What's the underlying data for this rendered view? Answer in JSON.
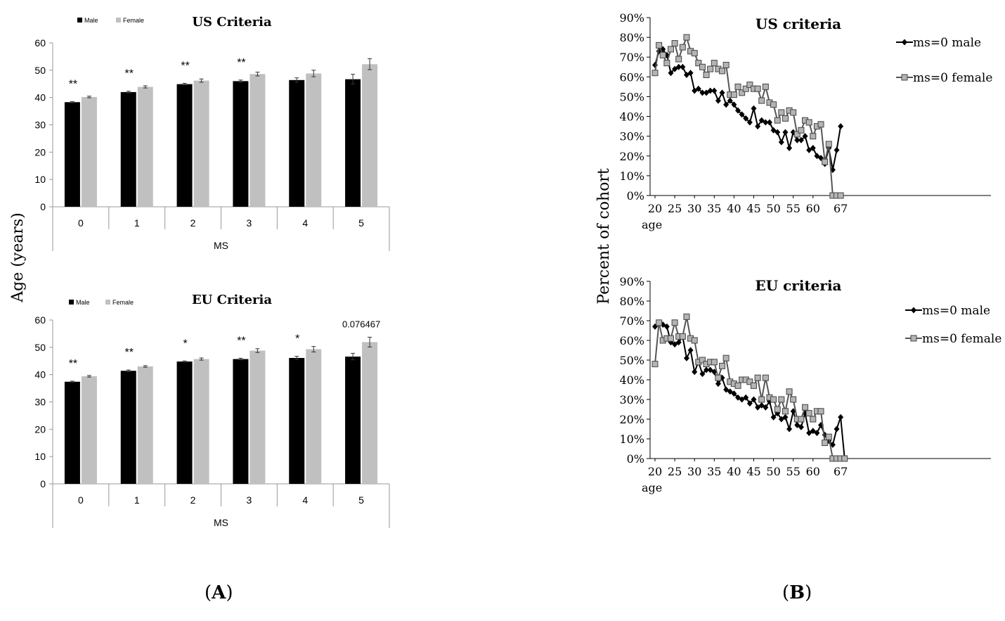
{
  "colors": {
    "male": "#000000",
    "female": "#c0c0c0",
    "female_line": "#555555",
    "female_marker": "#b4b4b4"
  },
  "panel_a_ylabel": "Age (years)",
  "panel_b_ylabel": "Percent of cohort",
  "captions": {
    "a_letter": "A",
    "b_letter": "B"
  },
  "chart_data": [
    {
      "type": "bar",
      "title": "US Criteria",
      "xlabel": "MS",
      "ylabel": "Age (years)",
      "ylim": [
        0,
        60
      ],
      "yticks": [
        0,
        10,
        20,
        30,
        40,
        50,
        60
      ],
      "categories": [
        "0",
        "1",
        "2",
        "3",
        "4",
        "5"
      ],
      "legend": [
        "Male",
        "Female"
      ],
      "series": [
        {
          "name": "Male",
          "values": [
            38.3,
            42.0,
            44.9,
            46.0,
            46.4,
            46.7
          ],
          "errors": [
            0.2,
            0.3,
            0.3,
            0.4,
            0.8,
            1.8
          ]
        },
        {
          "name": "Female",
          "values": [
            40.2,
            43.9,
            46.2,
            48.6,
            48.8,
            52.2
          ],
          "errors": [
            0.3,
            0.4,
            0.6,
            0.7,
            1.2,
            2.0
          ]
        }
      ],
      "annotations": [
        "**",
        "**",
        "**",
        "**",
        "",
        ""
      ]
    },
    {
      "type": "bar",
      "title": "EU Criteria",
      "xlabel": "MS",
      "ylabel": "Age (years)",
      "ylim": [
        0,
        60
      ],
      "yticks": [
        0,
        10,
        20,
        30,
        40,
        50,
        60
      ],
      "categories": [
        "0",
        "1",
        "2",
        "3",
        "4",
        "5"
      ],
      "legend": [
        "Male",
        "Female"
      ],
      "series": [
        {
          "name": "Male",
          "values": [
            37.4,
            41.4,
            44.8,
            45.7,
            46.1,
            46.6
          ],
          "errors": [
            0.2,
            0.3,
            0.2,
            0.3,
            0.6,
            1.2
          ]
        },
        {
          "name": "Female",
          "values": [
            39.4,
            43.0,
            45.7,
            48.8,
            49.3,
            51.9
          ],
          "errors": [
            0.3,
            0.3,
            0.4,
            0.7,
            1.0,
            1.8
          ]
        }
      ],
      "annotations": [
        "**",
        "**",
        "*",
        "**",
        "*",
        "0.076467"
      ]
    },
    {
      "type": "line",
      "title": "US criteria",
      "xlabel": "age",
      "ylabel": "Percent of cohort",
      "ylim": [
        0,
        90
      ],
      "yticks": [
        "0%",
        "10%",
        "20%",
        "30%",
        "40%",
        "50%",
        "60%",
        "70%",
        "80%",
        "90%"
      ],
      "xticks": [
        "20",
        "25",
        "30",
        "35",
        "40",
        "45",
        "50",
        "55",
        "60",
        "67"
      ],
      "series": [
        {
          "name": "ms=0 male",
          "marker": "diamond",
          "values": [
            66,
            73,
            74,
            71,
            62,
            64,
            65,
            65,
            61,
            62,
            53,
            54,
            52,
            52,
            53,
            53,
            48,
            52,
            46,
            48,
            46,
            43,
            41,
            39,
            37,
            44,
            35,
            38,
            37,
            37,
            33,
            32,
            27,
            32,
            24,
            32,
            28,
            28,
            30,
            23,
            24,
            20,
            19,
            16,
            24,
            13,
            23,
            35
          ]
        },
        {
          "name": "ms=0 female",
          "marker": "square",
          "values": [
            62,
            76,
            71,
            67,
            74,
            77,
            69,
            75,
            80,
            73,
            72,
            67,
            65,
            61,
            64,
            67,
            64,
            63,
            66,
            51,
            51,
            55,
            52,
            54,
            56,
            54,
            54,
            48,
            55,
            47,
            46,
            38,
            42,
            39,
            43,
            42,
            31,
            33,
            38,
            37,
            30,
            35,
            36,
            17,
            26,
            0,
            0,
            0
          ]
        }
      ]
    },
    {
      "type": "line",
      "title": "EU criteria",
      "xlabel": "age",
      "ylabel": "Percent of cohort",
      "ylim": [
        0,
        90
      ],
      "yticks": [
        "0%",
        "10%",
        "20%",
        "30%",
        "40%",
        "50%",
        "60%",
        "70%",
        "80%",
        "90%"
      ],
      "xticks": [
        "20",
        "25",
        "30",
        "35",
        "40",
        "45",
        "50",
        "55",
        "60",
        "67"
      ],
      "series": [
        {
          "name": "ms=0 male",
          "marker": "diamond",
          "values": [
            67,
            69,
            68,
            67,
            59,
            58,
            59,
            62,
            51,
            55,
            44,
            49,
            43,
            45,
            45,
            44,
            38,
            41,
            35,
            34,
            33,
            31,
            30,
            31,
            28,
            30,
            26,
            27,
            26,
            29,
            21,
            23,
            20,
            21,
            15,
            24,
            17,
            16,
            23,
            13,
            14,
            13,
            17,
            12,
            9,
            7,
            15,
            21,
            0
          ]
        },
        {
          "name": "ms=0 female",
          "marker": "square",
          "values": [
            48,
            69,
            60,
            61,
            61,
            69,
            62,
            62,
            72,
            61,
            60,
            49,
            50,
            48,
            49,
            49,
            41,
            47,
            51,
            39,
            38,
            37,
            40,
            40,
            39,
            37,
            41,
            30,
            41,
            31,
            30,
            25,
            30,
            24,
            34,
            30,
            20,
            20,
            26,
            23,
            20,
            24,
            24,
            8,
            11,
            0,
            0,
            0,
            0
          ]
        }
      ]
    }
  ]
}
